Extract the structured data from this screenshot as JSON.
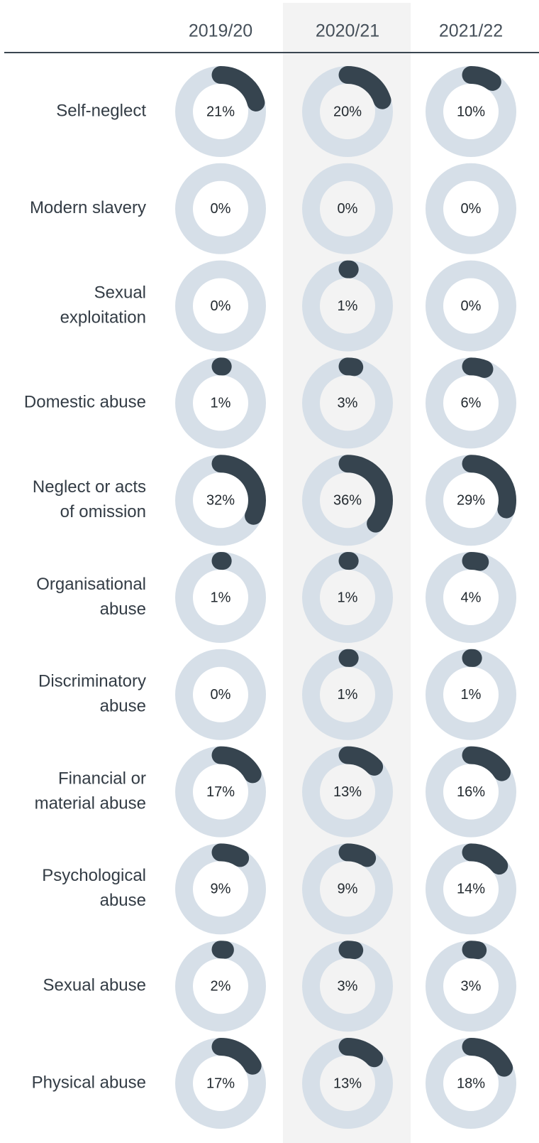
{
  "chart_data": {
    "type": "donut-grid",
    "years": [
      "2019/20",
      "2020/21",
      "2021/22"
    ],
    "highlighted_year": "2020/21",
    "value_unit": "%",
    "categories": [
      {
        "label_lines": [
          "Self-neglect"
        ],
        "values": [
          21,
          20,
          10
        ],
        "value_labels": [
          "21%",
          "20%",
          "10%"
        ]
      },
      {
        "label_lines": [
          "Modern slavery"
        ],
        "values": [
          0,
          0,
          0
        ],
        "value_labels": [
          "0%",
          "0%",
          "0%"
        ]
      },
      {
        "label_lines": [
          "Sexual",
          "exploitation"
        ],
        "values": [
          0,
          1,
          0
        ],
        "value_labels": [
          "0%",
          "1%",
          "0%"
        ]
      },
      {
        "label_lines": [
          "Domestic abuse"
        ],
        "values": [
          1,
          3,
          6
        ],
        "value_labels": [
          "1%",
          "3%",
          "6%"
        ]
      },
      {
        "label_lines": [
          "Neglect or acts",
          "of omission"
        ],
        "values": [
          32,
          36,
          29
        ],
        "value_labels": [
          "32%",
          "36%",
          "29%"
        ]
      },
      {
        "label_lines": [
          "Organisational",
          "abuse"
        ],
        "values": [
          1,
          1,
          4
        ],
        "value_labels": [
          "1%",
          "1%",
          "4%"
        ]
      },
      {
        "label_lines": [
          "Discriminatory",
          "abuse"
        ],
        "values": [
          0,
          1,
          1
        ],
        "value_labels": [
          "0%",
          "1%",
          "1%"
        ]
      },
      {
        "label_lines": [
          "Financial or",
          "material abuse"
        ],
        "values": [
          17,
          13,
          16
        ],
        "value_labels": [
          "17%",
          "13%",
          "16%"
        ]
      },
      {
        "label_lines": [
          "Psychological",
          "abuse"
        ],
        "values": [
          9,
          9,
          14
        ],
        "value_labels": [
          "9%",
          "9%",
          "14%"
        ]
      },
      {
        "label_lines": [
          "Sexual abuse"
        ],
        "values": [
          2,
          3,
          3
        ],
        "value_labels": [
          "2%",
          "3%",
          "3%"
        ]
      },
      {
        "label_lines": [
          "Physical abuse"
        ],
        "values": [
          17,
          13,
          18
        ],
        "value_labels": [
          "17%",
          "13%",
          "18%"
        ]
      }
    ],
    "colors": {
      "ring_track": "#d6dfe8",
      "ring_value": "#36444f",
      "highlight_band": "#f3f3f3",
      "header_rule": "#3a4650",
      "text": "#333c45"
    }
  }
}
